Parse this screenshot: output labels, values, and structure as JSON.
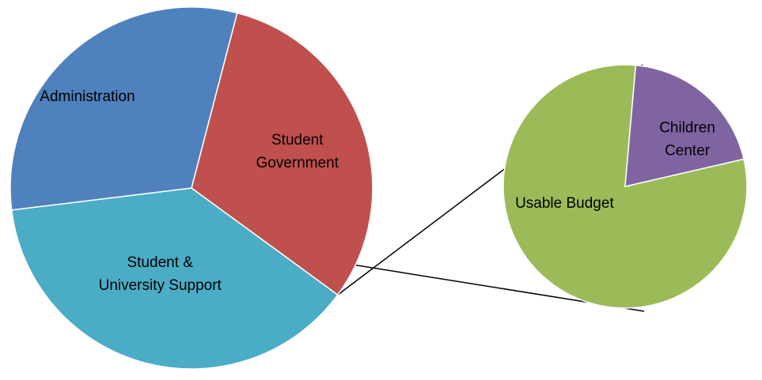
{
  "chart_data": [
    {
      "type": "pie",
      "role": "main",
      "slices": [
        {
          "label": [
            "Student",
            "Government"
          ],
          "value": 31,
          "color": "#C0504D"
        },
        {
          "label": [
            "Student &",
            "University Support"
          ],
          "value": 38,
          "color": "#4BACC6"
        },
        {
          "label": [
            "Administration"
          ],
          "value": 31,
          "color": "#4F81BD"
        }
      ]
    },
    {
      "type": "pie",
      "role": "breakdown",
      "breakdown_of": "Student & University Support",
      "slices": [
        {
          "label": [
            "Usable Budget"
          ],
          "value": 80,
          "color": "#9BBB59"
        },
        {
          "label": [
            "Children",
            "Center"
          ],
          "value": 20,
          "color": "#8064A2"
        }
      ]
    }
  ]
}
